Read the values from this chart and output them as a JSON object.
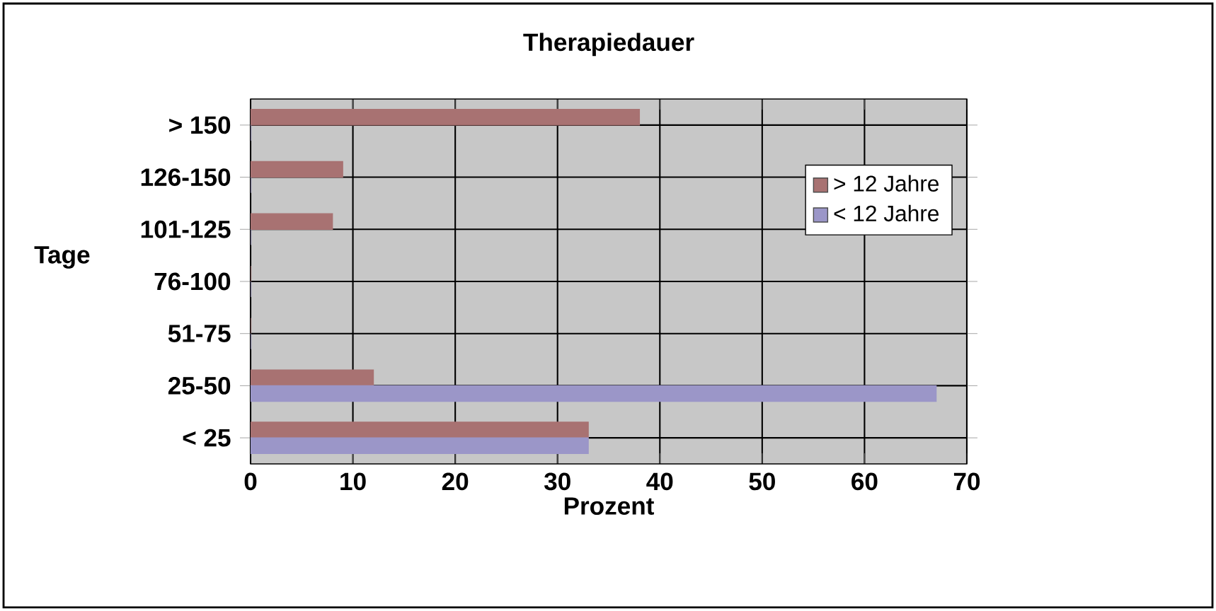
{
  "chart_data": {
    "type": "bar",
    "orientation": "horizontal",
    "title": "Therapiedauer",
    "xlabel": "Prozent",
    "ylabel": "Tage",
    "categories": [
      "> 150",
      "126-150",
      "101-125",
      "76-100",
      "51-75",
      "25-50",
      "< 25"
    ],
    "series": [
      {
        "name": "> 12 Jahre",
        "color": "#a87272",
        "values": [
          38,
          9,
          8,
          0,
          0,
          12,
          33
        ]
      },
      {
        "name": "< 12 Jahre",
        "color": "#9b96c8",
        "values": [
          0,
          0,
          0,
          0,
          0,
          67,
          33
        ]
      }
    ],
    "xlim": [
      0,
      70
    ],
    "xticks": [
      0,
      10,
      20,
      30,
      40,
      50,
      60,
      70
    ],
    "grid": true,
    "legend": "top right"
  }
}
